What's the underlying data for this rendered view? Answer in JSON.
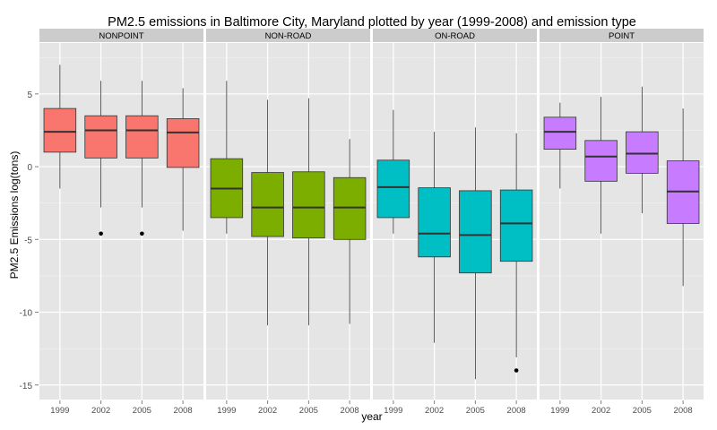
{
  "chart_data": {
    "type": "box",
    "title": "PM2.5 emissions in Baltimore City, Maryland plotted by year (1999-2008) and emission type",
    "xlabel": "year",
    "ylabel": "PM2.5 Emissions log(tons)",
    "ylim": [
      -16,
      8.5
    ],
    "yticks": [
      5,
      0,
      -5,
      -10,
      -15
    ],
    "categories": [
      "1999",
      "2002",
      "2005",
      "2008"
    ],
    "grid": true,
    "legend": "none",
    "facets": [
      {
        "name": "NONPOINT",
        "color": "#F8766D",
        "boxes": [
          {
            "year": "1999",
            "min": -1.5,
            "q1": 1.0,
            "median": 2.4,
            "q3": 4.0,
            "max": 7.0,
            "outliers": []
          },
          {
            "year": "2002",
            "min": -2.8,
            "q1": 0.6,
            "median": 2.5,
            "q3": 3.5,
            "max": 5.9,
            "outliers": [
              -4.6
            ]
          },
          {
            "year": "2005",
            "min": -2.8,
            "q1": 0.6,
            "median": 2.5,
            "q3": 3.5,
            "max": 5.9,
            "outliers": [
              -4.6
            ]
          },
          {
            "year": "2008",
            "min": -4.4,
            "q1": -0.05,
            "median": 2.35,
            "q3": 3.3,
            "max": 5.4,
            "outliers": []
          }
        ]
      },
      {
        "name": "NON-ROAD",
        "color": "#7CAE00",
        "boxes": [
          {
            "year": "1999",
            "min": -4.6,
            "q1": -3.5,
            "median": -1.5,
            "q3": 0.55,
            "max": 5.9,
            "outliers": []
          },
          {
            "year": "2002",
            "min": -10.9,
            "q1": -4.8,
            "median": -2.8,
            "q3": -0.4,
            "max": 4.6,
            "outliers": []
          },
          {
            "year": "2005",
            "min": -10.9,
            "q1": -4.9,
            "median": -2.8,
            "q3": -0.35,
            "max": 4.7,
            "outliers": []
          },
          {
            "year": "2008",
            "min": -10.8,
            "q1": -5.0,
            "median": -2.8,
            "q3": -0.75,
            "max": 1.9,
            "outliers": []
          }
        ]
      },
      {
        "name": "ON-ROAD",
        "color": "#00BFC4",
        "boxes": [
          {
            "year": "1999",
            "min": -4.6,
            "q1": -3.5,
            "median": -1.4,
            "q3": 0.45,
            "max": 3.9,
            "outliers": []
          },
          {
            "year": "2002",
            "min": -12.1,
            "q1": -6.2,
            "median": -4.6,
            "q3": -1.45,
            "max": 2.4,
            "outliers": []
          },
          {
            "year": "2005",
            "min": -14.6,
            "q1": -7.3,
            "median": -4.7,
            "q3": -1.65,
            "max": 2.7,
            "outliers": []
          },
          {
            "year": "2008",
            "min": -13.1,
            "q1": -6.5,
            "median": -3.9,
            "q3": -1.6,
            "max": 2.3,
            "outliers": [
              -14.0
            ]
          }
        ]
      },
      {
        "name": "POINT",
        "color": "#C77CFF",
        "boxes": [
          {
            "year": "1999",
            "min": -1.5,
            "q1": 1.2,
            "median": 2.4,
            "q3": 3.4,
            "max": 4.4,
            "outliers": []
          },
          {
            "year": "2002",
            "min": -4.6,
            "q1": -1.0,
            "median": 0.7,
            "q3": 1.8,
            "max": 4.8,
            "outliers": []
          },
          {
            "year": "2005",
            "min": -3.2,
            "q1": -0.45,
            "median": 0.9,
            "q3": 2.4,
            "max": 5.5,
            "outliers": []
          },
          {
            "year": "2008",
            "min": -8.2,
            "q1": -3.9,
            "median": -1.7,
            "q3": 0.4,
            "max": 4.0,
            "outliers": []
          }
        ]
      }
    ]
  }
}
